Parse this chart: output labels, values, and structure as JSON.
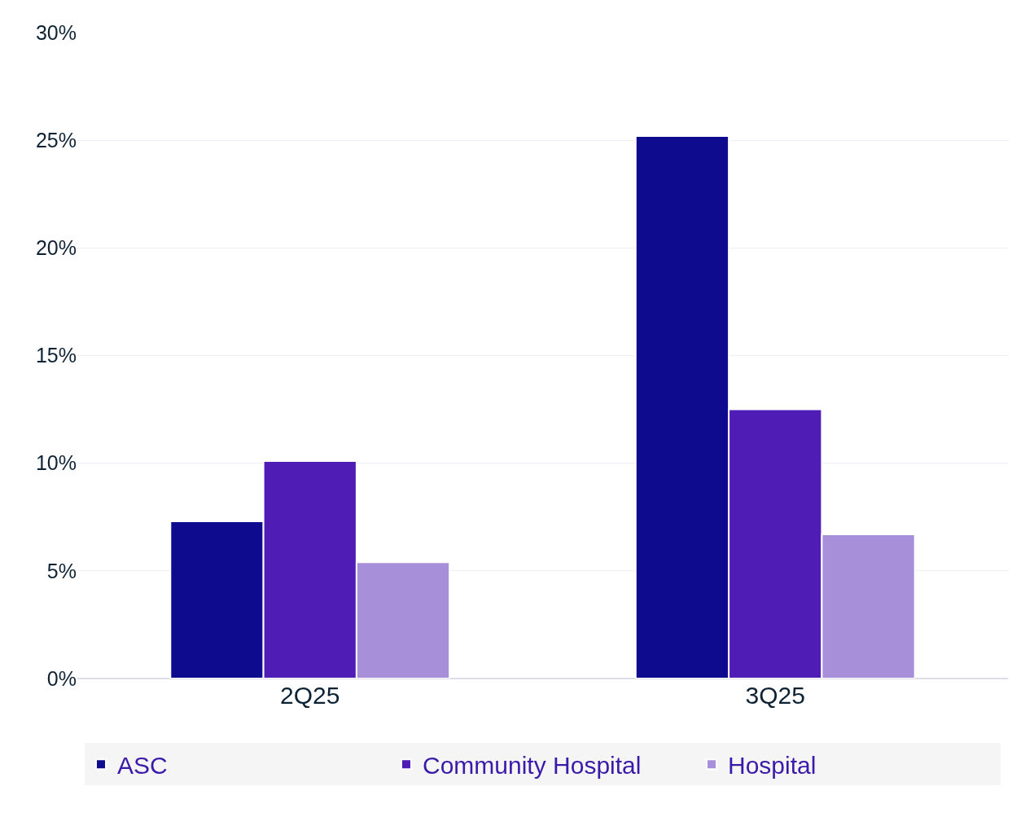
{
  "chart_data": {
    "type": "bar",
    "categories": [
      "2Q25",
      "3Q25"
    ],
    "series": [
      {
        "name": "ASC",
        "color": "#0e0b8f",
        "values": [
          7.3,
          25.2
        ]
      },
      {
        "name": "Community Hospital",
        "color": "#4f1db5",
        "values": [
          10.1,
          12.5
        ]
      },
      {
        "name": "Hospital",
        "color": "#a78fd9",
        "values": [
          5.4,
          6.7
        ]
      }
    ],
    "ylim": [
      0,
      30
    ],
    "yticks": [
      {
        "value": 0,
        "label": "0%"
      },
      {
        "value": 5,
        "label": "5%"
      },
      {
        "value": 10,
        "label": "10%"
      },
      {
        "value": 15,
        "label": "15%"
      },
      {
        "value": 20,
        "label": "20%"
      },
      {
        "value": 25,
        "label": "25%"
      },
      {
        "value": 30,
        "label": "30%"
      }
    ],
    "grid": "y",
    "legend": "bottom"
  }
}
